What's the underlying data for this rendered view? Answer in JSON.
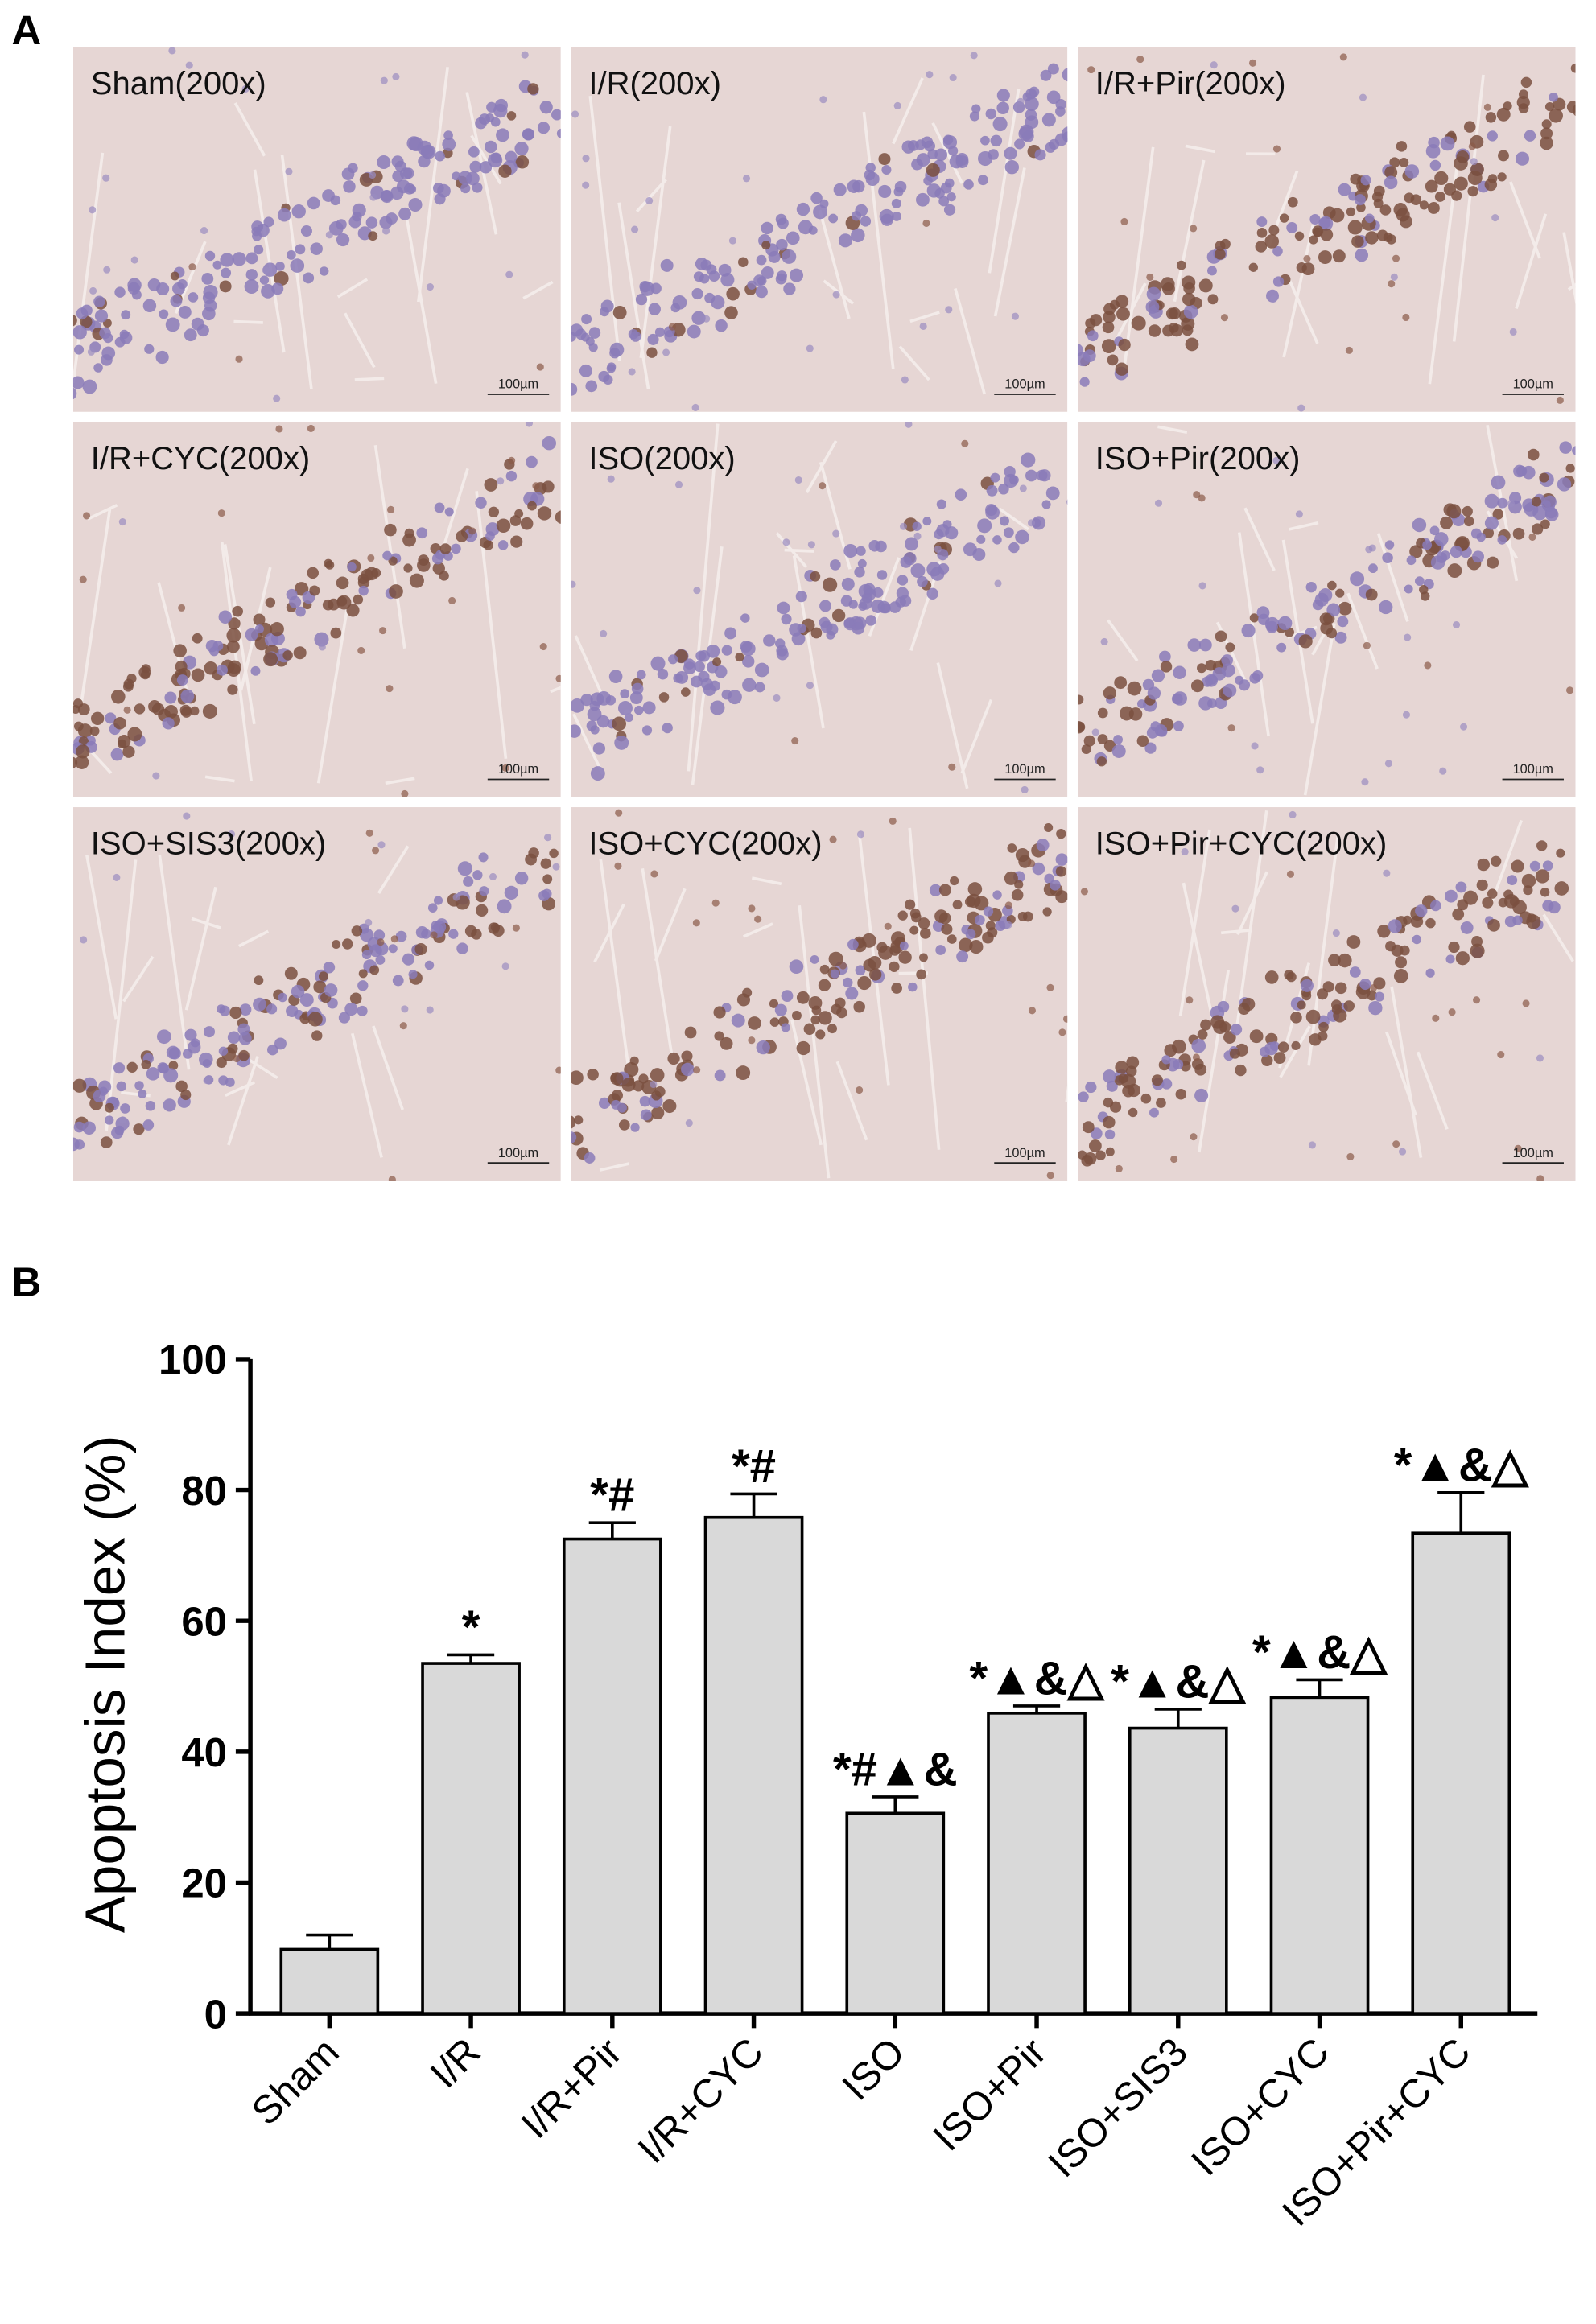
{
  "panel_a": {
    "panel_label": "A",
    "scale_bar": "100µm",
    "images": [
      "Sham(200x)",
      "I/R(200x)",
      "I/R+Pir(200x)",
      "I/R+CYC(200x)",
      "ISO(200x)",
      "ISO+Pir(200x)",
      "ISO+SIS3(200x)",
      "ISO+CYC(200x)",
      "ISO+Pir+CYC(200x)"
    ]
  },
  "chart_data": {
    "type": "bar",
    "panel_label": "B",
    "y_label": "Apoptosis Index (%)",
    "categories": [
      "Sham",
      "I/R",
      "I/R+Pir",
      "I/R+CYC",
      "ISO",
      "ISO+Pir",
      "ISO+SIS3",
      "ISO+CYC",
      "ISO+Pir+CYC"
    ],
    "values": [
      9.8,
      53.5,
      72.5,
      75.8,
      30.6,
      45.9,
      43.6,
      48.3,
      73.4
    ],
    "errors": [
      2.2,
      1.3,
      2.5,
      3.6,
      2.5,
      1.1,
      2.9,
      2.7,
      6.2
    ],
    "annotations": [
      null,
      "*",
      "*#",
      "*#",
      "*#▲&",
      "*▲&△",
      "*▲&△",
      "*▲&△",
      "*▲&△"
    ],
    "color": "#d9d9d9",
    "ylim": [
      0,
      100
    ],
    "yticks": [
      0,
      20,
      40,
      60,
      80,
      100
    ]
  }
}
